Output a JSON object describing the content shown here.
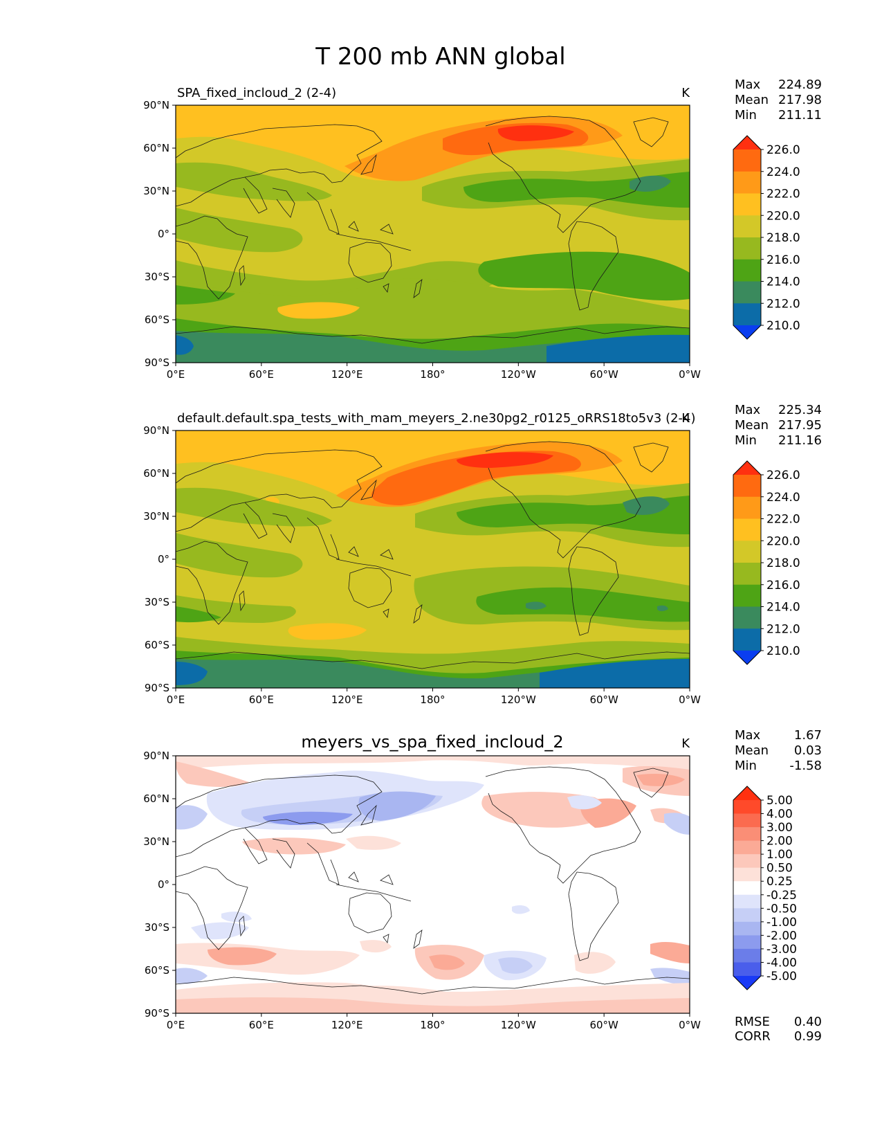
{
  "figure": {
    "title": "T 200 mb ANN global"
  },
  "axes": {
    "lon_ticks": [
      "0°E",
      "60°E",
      "120°E",
      "180°",
      "120°W",
      "60°W",
      "0°W"
    ],
    "lat_ticks": [
      "90°N",
      "60°N",
      "30°N",
      "0°",
      "30°S",
      "60°S",
      "90°S"
    ]
  },
  "panels": [
    {
      "title": "SPA_fixed_incloud_2 (2-4)",
      "units": "K",
      "stats": {
        "labels": [
          "Max",
          "Mean",
          "Min"
        ],
        "values": [
          "224.89",
          "217.98",
          "211.11"
        ]
      },
      "colorbar": {
        "levels": [
          "226.0",
          "224.0",
          "222.0",
          "220.0",
          "218.0",
          "216.0",
          "214.0",
          "212.0",
          "210.0"
        ],
        "colors": [
          "#ff3010",
          "#ff6a10",
          "#ff9a18",
          "#ffc020",
          "#d3c828",
          "#97b91f",
          "#4ea415",
          "#3a8a5d",
          "#0c6ca8",
          "#0a3ef0"
        ]
      }
    },
    {
      "title": "default.default.spa_tests_with_mam_meyers_2.ne30pg2_r0125_oRRS18to5v3 (2-4)",
      "units": "K",
      "stats": {
        "labels": [
          "Max",
          "Mean",
          "Min"
        ],
        "values": [
          "225.34",
          "217.95",
          "211.16"
        ]
      },
      "colorbar": {
        "levels": [
          "226.0",
          "224.0",
          "222.0",
          "220.0",
          "218.0",
          "216.0",
          "214.0",
          "212.0",
          "210.0"
        ],
        "colors": [
          "#ff3010",
          "#ff6a10",
          "#ff9a18",
          "#ffc020",
          "#d3c828",
          "#97b91f",
          "#4ea415",
          "#3a8a5d",
          "#0c6ca8",
          "#0a3ef0"
        ]
      }
    },
    {
      "title": "meyers_vs_spa_fixed_incloud_2",
      "units": "K",
      "stats": {
        "labels": [
          "Max",
          "Mean",
          "Min"
        ],
        "values": [
          "1.67",
          "0.03",
          "-1.58"
        ]
      },
      "colorbar": {
        "levels": [
          "5.00",
          "4.00",
          "3.00",
          "2.00",
          "1.00",
          "0.50",
          "0.25",
          "-0.25",
          "-0.50",
          "-1.00",
          "-2.00",
          "-3.00",
          "-4.00",
          "-5.00"
        ],
        "colors": [
          "#ff3010",
          "#ff4a2a",
          "#fb6b4f",
          "#fa8e76",
          "#fbaa96",
          "#fcc8bb",
          "#fde1d9",
          "#ffffff",
          "#dfe4fb",
          "#c6cff6",
          "#a9b6f1",
          "#8c9bee",
          "#6b7de9",
          "#4a5eeb",
          "#1a3af6"
        ]
      },
      "extra_stats": {
        "labels": [
          "RMSE",
          "CORR"
        ],
        "values": [
          "0.40",
          "0.99"
        ]
      }
    }
  ]
}
